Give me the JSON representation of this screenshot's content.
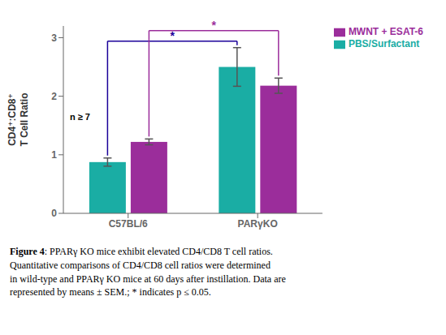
{
  "chart_data": {
    "type": "bar",
    "categories": [
      "C57BL/6",
      "PARγKO"
    ],
    "series": [
      {
        "name": "PBS/Surfactant",
        "color": "#1aada4",
        "values": [
          0.875,
          2.5
        ],
        "errors": [
          0.07,
          0.33
        ]
      },
      {
        "name": "MWNT + ESAT-6",
        "color": "#9b2d9b",
        "values": [
          1.22,
          2.18
        ],
        "errors": [
          0.05,
          0.13
        ]
      }
    ],
    "ylabel": "CD4⁺:CD8⁺\nT Cell Ratio",
    "ylim": [
      0,
      3.2
    ],
    "yticks": [
      0,
      1,
      2,
      3
    ],
    "grid": false,
    "legend": "upper right",
    "annotations": [
      {
        "text": "n ≥ 7"
      }
    ],
    "brackets": [
      {
        "series": "PBS/Surfactant",
        "label": "*",
        "color": "#1a0099"
      },
      {
        "series": "MWNT + ESAT-6",
        "label": "*",
        "color": "#9b2d9b"
      }
    ],
    "caption": {
      "bold": "Figure 4",
      "text": ": PPARγ KO mice exhibit elevated CD4/CD8 T cell ratios.\nQuantitative comparisons of CD4/CD8 cell ratios were determined\nin wild-type and PPARγ KO mice at 60 days after instillation. Data are\nrepresented by means ± SEM.; * indicates p ≤ 0.05."
    }
  }
}
